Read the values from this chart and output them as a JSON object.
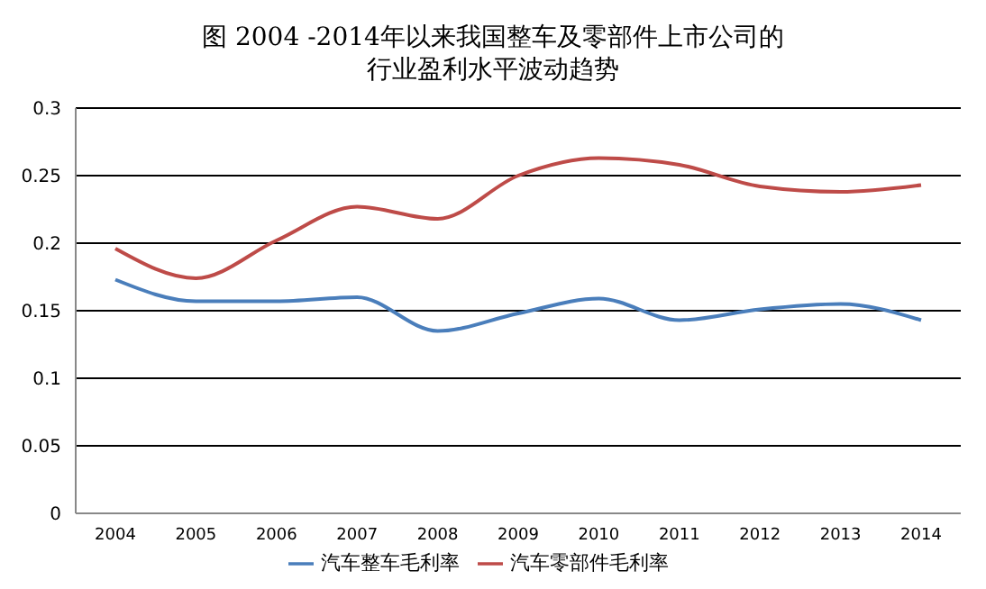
{
  "chart_data": {
    "type": "line",
    "title": "图  2004  -2014年以来我国整车及零部件上市公司的行业盈利水平波动趋势",
    "categories": [
      "2004",
      "2005",
      "2006",
      "2007",
      "2008",
      "2009",
      "2010",
      "2011",
      "2012",
      "2013",
      "2014"
    ],
    "series": [
      {
        "name": "汽车整车毛利率",
        "color": "#4a7ebb",
        "values": [
          0.173,
          0.157,
          0.157,
          0.16,
          0.135,
          0.148,
          0.159,
          0.143,
          0.151,
          0.155,
          0.143
        ]
      },
      {
        "name": "汽车零部件毛利率",
        "color": "#be4b48",
        "values": [
          0.196,
          0.174,
          0.202,
          0.227,
          0.218,
          0.25,
          0.263,
          0.258,
          0.242,
          0.238,
          0.243
        ]
      }
    ],
    "ylim": [
      0,
      0.3
    ],
    "yticks": [
      0,
      0.05,
      0.1,
      0.15,
      0.2,
      0.25,
      0.3
    ],
    "grid": "y",
    "legend": "bottom",
    "marker": "none",
    "line_style": "solid"
  }
}
